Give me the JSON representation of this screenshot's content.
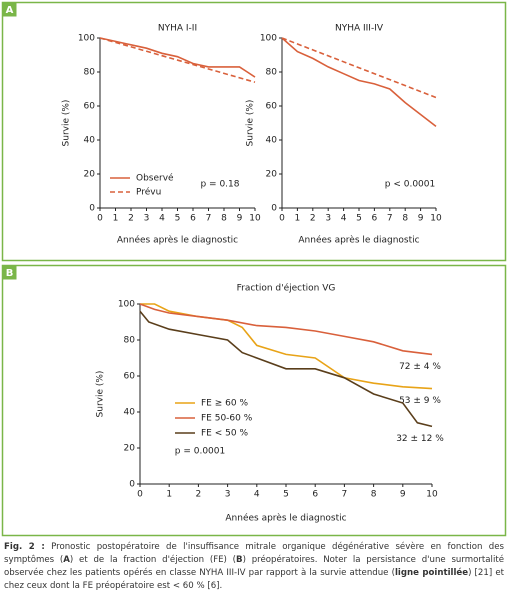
{
  "panels": [
    {
      "label": "A"
    },
    {
      "label": "B"
    }
  ],
  "chart_data": [
    {
      "type": "line",
      "title": "NYHA I-II",
      "x_label": "Années après le diagnostic",
      "y_label": "Survie (%)",
      "xlim": [
        0,
        10
      ],
      "ylim": [
        0,
        100
      ],
      "xticks": [
        0,
        1,
        2,
        3,
        4,
        5,
        6,
        7,
        8,
        9,
        10
      ],
      "yticks": [
        0,
        20,
        40,
        60,
        80,
        100
      ],
      "annotation": "p = 0.18",
      "series": [
        {
          "name": "Observé",
          "color": "#d9603b",
          "dashed": false,
          "x": [
            0,
            1,
            2,
            3,
            4,
            5,
            6,
            7,
            8,
            9,
            9.5,
            10
          ],
          "values": [
            100,
            98,
            96,
            94,
            91,
            89,
            85,
            83,
            83,
            83,
            80,
            77
          ]
        },
        {
          "name": "Prévu",
          "color": "#d9603b",
          "dashed": true,
          "x": [
            0,
            10
          ],
          "values": [
            100,
            74
          ]
        }
      ]
    },
    {
      "type": "line",
      "title": "NYHA III-IV",
      "x_label": "Années après le diagnostic",
      "y_label": "Survie (%)",
      "xlim": [
        0,
        10
      ],
      "ylim": [
        0,
        100
      ],
      "xticks": [
        0,
        1,
        2,
        3,
        4,
        5,
        6,
        7,
        8,
        9,
        10
      ],
      "yticks": [
        0,
        20,
        40,
        60,
        80,
        100
      ],
      "annotation": "p < 0.0001",
      "series": [
        {
          "color": "#d9603b",
          "dashed": false,
          "x": [
            0,
            1,
            2,
            3,
            4,
            5,
            6,
            7,
            8,
            9,
            10
          ],
          "values": [
            100,
            92,
            88,
            83,
            79,
            75,
            73,
            70,
            62,
            55,
            48
          ]
        },
        {
          "color": "#d9603b",
          "dashed": true,
          "x": [
            0,
            10
          ],
          "values": [
            100,
            65
          ]
        }
      ]
    },
    {
      "type": "line",
      "title": "Fraction d'éjection VG",
      "x_label": "Années après le diagnostic",
      "y_label": "Survie (%)",
      "xlim": [
        0,
        10
      ],
      "ylim": [
        0,
        100
      ],
      "xticks": [
        0,
        1,
        2,
        3,
        4,
        5,
        6,
        7,
        8,
        9,
        10
      ],
      "yticks": [
        0,
        20,
        40,
        60,
        80,
        100
      ],
      "annotation": "p = 0.0001",
      "series": [
        {
          "name": "FE ≥ 60 %",
          "color": "#e8a317",
          "dashed": false,
          "x": [
            0,
            0.5,
            1,
            2,
            3,
            3.5,
            4,
            5,
            6,
            7,
            8,
            9,
            10
          ],
          "values": [
            100,
            100,
            96,
            93,
            91,
            87,
            77,
            72,
            70,
            59,
            56,
            54,
            53
          ],
          "end_label": "53 ± 9 %"
        },
        {
          "name": "FE 50-60 %",
          "color": "#d9603b",
          "dashed": false,
          "x": [
            0,
            0.5,
            1,
            2,
            3,
            4,
            5,
            6,
            7,
            8,
            9,
            10
          ],
          "values": [
            100,
            97,
            95,
            93,
            91,
            88,
            87,
            85,
            82,
            79,
            74,
            72
          ],
          "end_label": "72 ± 4 %"
        },
        {
          "name": "FE < 50 %",
          "color": "#5a3e1b",
          "dashed": false,
          "x": [
            0,
            0.3,
            1,
            2,
            3,
            3.5,
            4,
            5,
            6,
            7,
            8,
            9,
            9.5,
            10
          ],
          "values": [
            96,
            90,
            86,
            83,
            80,
            73,
            70,
            64,
            64,
            59,
            50,
            45,
            34,
            32
          ],
          "end_label": "32 ± 12 %"
        }
      ]
    }
  ],
  "caption": [
    {
      "text": "Fig. 2 :",
      "bold": true
    },
    {
      "text": " Pronostic postopératoire de l'insuffisance mitrale organique dégénérative sévère en fonction des symptômes (",
      "bold": false
    },
    {
      "text": "A",
      "bold": true
    },
    {
      "text": ") et de la fraction d'éjection (FE) (",
      "bold": false
    },
    {
      "text": "B",
      "bold": true
    },
    {
      "text": ") préopératoires. Noter la persistance d'une surmortalité observée chez les patients opérés en classe NYHA III-IV par rapport à la survie attendue (",
      "bold": false
    },
    {
      "text": "ligne pointillée",
      "bold": true
    },
    {
      "text": ") [21] et chez ceux dont la FE préopératoire est < 60 % [6].",
      "bold": false
    }
  ]
}
